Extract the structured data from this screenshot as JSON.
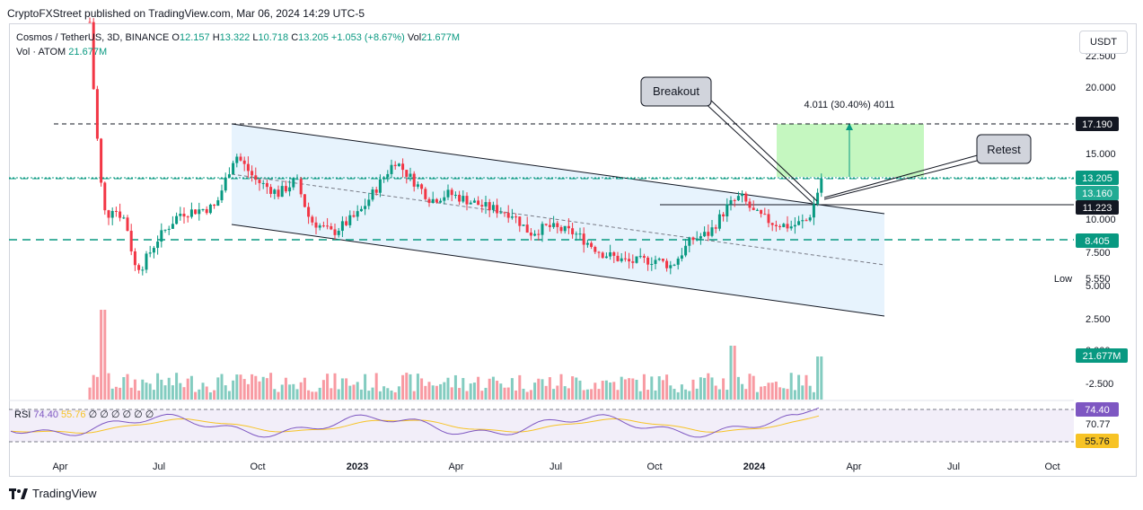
{
  "publisher": "CryptoFXStreet published on TradingView.com, Mar 06, 2024 14:29 UTC-5",
  "legend": {
    "symbol": "Cosmos / TetherUS, 3D, BINANCE",
    "o_label": "O",
    "o": "12.157",
    "h_label": "H",
    "h": "13.322",
    "l_label": "L",
    "l": "10.718",
    "c_label": "C",
    "c": "13.205",
    "chg": "+1.053 (+8.67%)",
    "vol_label": "Vol",
    "vol": "21.677M",
    "vol_series": "Vol · ATOM",
    "vol_series_val": "21.677M"
  },
  "currency": "USDT",
  "footer": "TradingView",
  "rsi": {
    "label": "RSI",
    "v1": "74.40",
    "v2": "55.76",
    "dots": "∅ ∅ ∅ ∅ ∅ ∅"
  },
  "colors": {
    "up": "#089981",
    "down": "#f23645",
    "rsi": "#7e57c2",
    "rsi_ma": "#f7c325",
    "channel": "#d3e9fb",
    "target": "#b7f5b0"
  },
  "chart_data": {
    "type": "candlestick",
    "title": "Cosmos / TetherUS, 3D, BINANCE",
    "y_ticks": [
      "22.500",
      "20.000",
      "15.000",
      "10.000",
      "7.500",
      "5.000",
      "2.500",
      "0.000",
      "-2.500"
    ],
    "x_ticks": [
      "Apr",
      "Jul",
      "Oct",
      "2023",
      "Apr",
      "Jul",
      "Oct",
      "2024",
      "Apr",
      "Jul",
      "Oct"
    ],
    "price_labels": [
      {
        "text": "17.190",
        "kind": "dark"
      },
      {
        "text": "13.205",
        "kind": "green"
      },
      {
        "text": "13.160",
        "kind": "green"
      },
      {
        "text": "11.223",
        "kind": "dark"
      },
      {
        "text": "8.405",
        "kind": "green"
      },
      {
        "text": "5.550",
        "kind": "plain"
      },
      {
        "text": "21.677M",
        "kind": "green"
      }
    ],
    "low_label": "Low",
    "annotations": {
      "breakout": "Breakout",
      "retest": "Retest",
      "measure": "4.011 (30.40%) 4011"
    },
    "horizontal_levels": [
      17.19,
      13.205,
      11.223,
      8.405
    ],
    "rsi_ticks": [
      "74.40",
      "70.77",
      "55.76"
    ],
    "ohlc_last": {
      "open": 12.157,
      "high": 13.322,
      "low": 10.718,
      "close": 13.205
    }
  }
}
